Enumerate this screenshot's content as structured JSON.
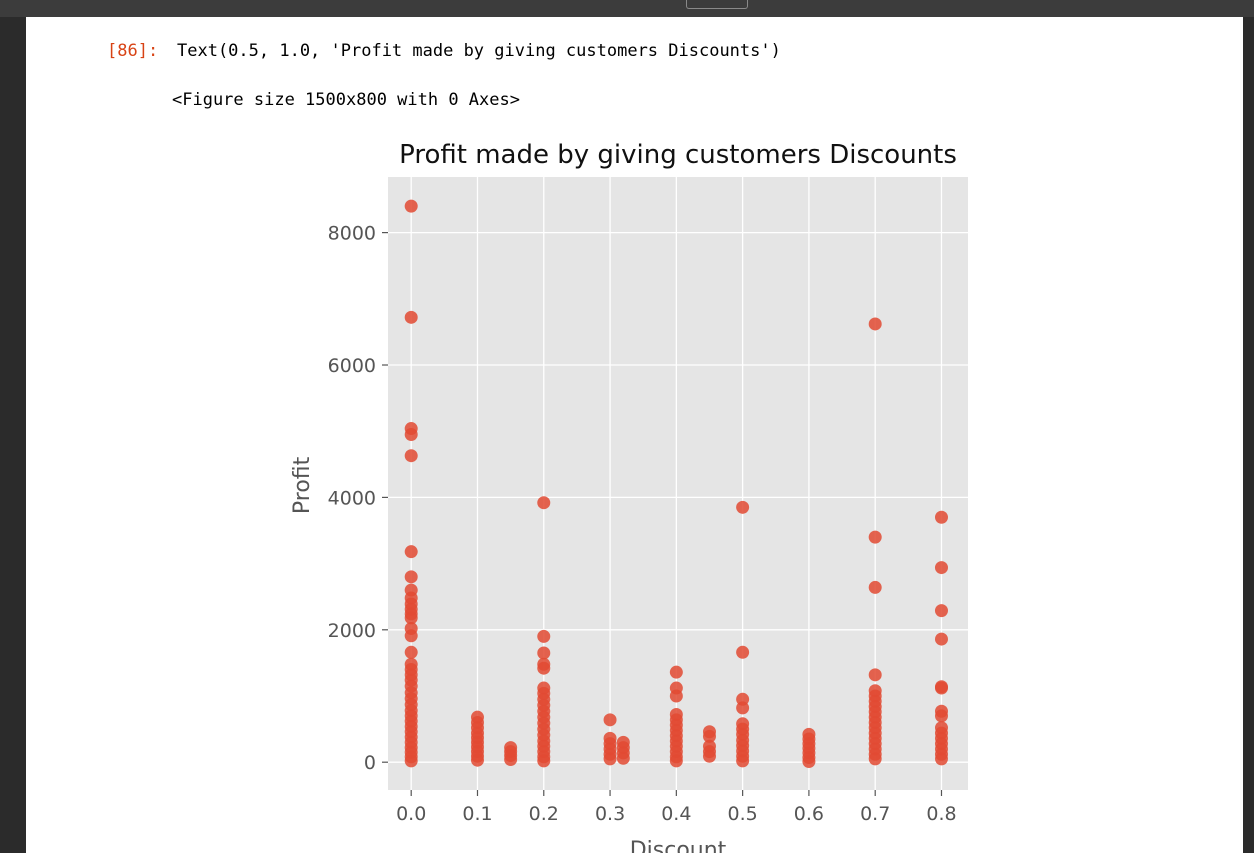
{
  "cell": {
    "prompt": "[86]:",
    "output_text": "Text(0.5, 1.0, 'Profit made by giving customers Discounts')",
    "figure_text": "<Figure size 1500x800 with 0 Axes>"
  },
  "colors": {
    "plot_bg": "#e5e5e5",
    "grid": "#ffffff",
    "marker": "#e24a33",
    "prompt": "#d84315"
  },
  "chart_data": {
    "type": "scatter",
    "title": "Profit made by giving customers Discounts",
    "xlabel": "Discount",
    "ylabel": "Profit",
    "xlim": [
      -0.035,
      0.84
    ],
    "ylim": [
      -420,
      8840
    ],
    "xticks": [
      0.0,
      0.1,
      0.2,
      0.3,
      0.4,
      0.5,
      0.6,
      0.7,
      0.8
    ],
    "xtick_labels": [
      "0.0",
      "0.1",
      "0.2",
      "0.3",
      "0.4",
      "0.5",
      "0.6",
      "0.7",
      "0.8"
    ],
    "yticks": [
      0,
      2000,
      4000,
      6000,
      8000
    ],
    "ytick_labels": [
      "0",
      "2000",
      "4000",
      "6000",
      "8000"
    ],
    "grid": true,
    "points": [
      {
        "x": 0.0,
        "y": 8400
      },
      {
        "x": 0.0,
        "y": 6720
      },
      {
        "x": 0.0,
        "y": 5040
      },
      {
        "x": 0.0,
        "y": 4950
      },
      {
        "x": 0.0,
        "y": 4630
      },
      {
        "x": 0.0,
        "y": 3180
      },
      {
        "x": 0.0,
        "y": 2800
      },
      {
        "x": 0.0,
        "y": 2600
      },
      {
        "x": 0.0,
        "y": 2480
      },
      {
        "x": 0.0,
        "y": 2390
      },
      {
        "x": 0.0,
        "y": 2310
      },
      {
        "x": 0.0,
        "y": 2240
      },
      {
        "x": 0.0,
        "y": 2180
      },
      {
        "x": 0.0,
        "y": 2020
      },
      {
        "x": 0.0,
        "y": 1910
      },
      {
        "x": 0.0,
        "y": 1660
      },
      {
        "x": 0.0,
        "y": 1480
      },
      {
        "x": 0.0,
        "y": 1400
      },
      {
        "x": 0.0,
        "y": 1320
      },
      {
        "x": 0.0,
        "y": 1240
      },
      {
        "x": 0.0,
        "y": 1150
      },
      {
        "x": 0.0,
        "y": 1050
      },
      {
        "x": 0.0,
        "y": 960
      },
      {
        "x": 0.0,
        "y": 870
      },
      {
        "x": 0.0,
        "y": 780
      },
      {
        "x": 0.0,
        "y": 700
      },
      {
        "x": 0.0,
        "y": 620
      },
      {
        "x": 0.0,
        "y": 540
      },
      {
        "x": 0.0,
        "y": 460
      },
      {
        "x": 0.0,
        "y": 380
      },
      {
        "x": 0.0,
        "y": 300
      },
      {
        "x": 0.0,
        "y": 220
      },
      {
        "x": 0.0,
        "y": 150
      },
      {
        "x": 0.0,
        "y": 80
      },
      {
        "x": 0.0,
        "y": 20
      },
      {
        "x": 0.1,
        "y": 680
      },
      {
        "x": 0.1,
        "y": 600
      },
      {
        "x": 0.1,
        "y": 520
      },
      {
        "x": 0.1,
        "y": 440
      },
      {
        "x": 0.1,
        "y": 370
      },
      {
        "x": 0.1,
        "y": 300
      },
      {
        "x": 0.1,
        "y": 230
      },
      {
        "x": 0.1,
        "y": 160
      },
      {
        "x": 0.1,
        "y": 90
      },
      {
        "x": 0.1,
        "y": 30
      },
      {
        "x": 0.15,
        "y": 220
      },
      {
        "x": 0.15,
        "y": 160
      },
      {
        "x": 0.15,
        "y": 100
      },
      {
        "x": 0.15,
        "y": 40
      },
      {
        "x": 0.2,
        "y": 3920
      },
      {
        "x": 0.2,
        "y": 1900
      },
      {
        "x": 0.2,
        "y": 1650
      },
      {
        "x": 0.2,
        "y": 1480
      },
      {
        "x": 0.2,
        "y": 1420
      },
      {
        "x": 0.2,
        "y": 1120
      },
      {
        "x": 0.2,
        "y": 1040
      },
      {
        "x": 0.2,
        "y": 950
      },
      {
        "x": 0.2,
        "y": 860
      },
      {
        "x": 0.2,
        "y": 770
      },
      {
        "x": 0.2,
        "y": 680
      },
      {
        "x": 0.2,
        "y": 590
      },
      {
        "x": 0.2,
        "y": 500
      },
      {
        "x": 0.2,
        "y": 410
      },
      {
        "x": 0.2,
        "y": 320
      },
      {
        "x": 0.2,
        "y": 240
      },
      {
        "x": 0.2,
        "y": 160
      },
      {
        "x": 0.2,
        "y": 80
      },
      {
        "x": 0.2,
        "y": 20
      },
      {
        "x": 0.3,
        "y": 640
      },
      {
        "x": 0.3,
        "y": 360
      },
      {
        "x": 0.3,
        "y": 280
      },
      {
        "x": 0.3,
        "y": 200
      },
      {
        "x": 0.3,
        "y": 120
      },
      {
        "x": 0.3,
        "y": 50
      },
      {
        "x": 0.32,
        "y": 300
      },
      {
        "x": 0.32,
        "y": 220
      },
      {
        "x": 0.32,
        "y": 140
      },
      {
        "x": 0.32,
        "y": 60
      },
      {
        "x": 0.4,
        "y": 1360
      },
      {
        "x": 0.4,
        "y": 1120
      },
      {
        "x": 0.4,
        "y": 1000
      },
      {
        "x": 0.4,
        "y": 720
      },
      {
        "x": 0.4,
        "y": 640
      },
      {
        "x": 0.4,
        "y": 560
      },
      {
        "x": 0.4,
        "y": 480
      },
      {
        "x": 0.4,
        "y": 400
      },
      {
        "x": 0.4,
        "y": 320
      },
      {
        "x": 0.4,
        "y": 240
      },
      {
        "x": 0.4,
        "y": 160
      },
      {
        "x": 0.4,
        "y": 80
      },
      {
        "x": 0.4,
        "y": 20
      },
      {
        "x": 0.45,
        "y": 460
      },
      {
        "x": 0.45,
        "y": 390
      },
      {
        "x": 0.45,
        "y": 240
      },
      {
        "x": 0.45,
        "y": 160
      },
      {
        "x": 0.45,
        "y": 90
      },
      {
        "x": 0.5,
        "y": 3850
      },
      {
        "x": 0.5,
        "y": 1660
      },
      {
        "x": 0.5,
        "y": 950
      },
      {
        "x": 0.5,
        "y": 820
      },
      {
        "x": 0.5,
        "y": 580
      },
      {
        "x": 0.5,
        "y": 500
      },
      {
        "x": 0.5,
        "y": 420
      },
      {
        "x": 0.5,
        "y": 330
      },
      {
        "x": 0.5,
        "y": 250
      },
      {
        "x": 0.5,
        "y": 170
      },
      {
        "x": 0.5,
        "y": 90
      },
      {
        "x": 0.5,
        "y": 20
      },
      {
        "x": 0.6,
        "y": 420
      },
      {
        "x": 0.6,
        "y": 350
      },
      {
        "x": 0.6,
        "y": 280
      },
      {
        "x": 0.6,
        "y": 210
      },
      {
        "x": 0.6,
        "y": 140
      },
      {
        "x": 0.6,
        "y": 70
      },
      {
        "x": 0.6,
        "y": 10
      },
      {
        "x": 0.7,
        "y": 6620
      },
      {
        "x": 0.7,
        "y": 3400
      },
      {
        "x": 0.7,
        "y": 2640
      },
      {
        "x": 0.7,
        "y": 1320
      },
      {
        "x": 0.7,
        "y": 1080
      },
      {
        "x": 0.7,
        "y": 1000
      },
      {
        "x": 0.7,
        "y": 920
      },
      {
        "x": 0.7,
        "y": 840
      },
      {
        "x": 0.7,
        "y": 760
      },
      {
        "x": 0.7,
        "y": 680
      },
      {
        "x": 0.7,
        "y": 600
      },
      {
        "x": 0.7,
        "y": 520
      },
      {
        "x": 0.7,
        "y": 440
      },
      {
        "x": 0.7,
        "y": 360
      },
      {
        "x": 0.7,
        "y": 280
      },
      {
        "x": 0.7,
        "y": 200
      },
      {
        "x": 0.7,
        "y": 120
      },
      {
        "x": 0.7,
        "y": 50
      },
      {
        "x": 0.8,
        "y": 3700
      },
      {
        "x": 0.8,
        "y": 2940
      },
      {
        "x": 0.8,
        "y": 2290
      },
      {
        "x": 0.8,
        "y": 1860
      },
      {
        "x": 0.8,
        "y": 1140
      },
      {
        "x": 0.8,
        "y": 1120
      },
      {
        "x": 0.8,
        "y": 770
      },
      {
        "x": 0.8,
        "y": 700
      },
      {
        "x": 0.8,
        "y": 520
      },
      {
        "x": 0.8,
        "y": 440
      },
      {
        "x": 0.8,
        "y": 360
      },
      {
        "x": 0.8,
        "y": 280
      },
      {
        "x": 0.8,
        "y": 200
      },
      {
        "x": 0.8,
        "y": 120
      },
      {
        "x": 0.8,
        "y": 50
      }
    ]
  }
}
